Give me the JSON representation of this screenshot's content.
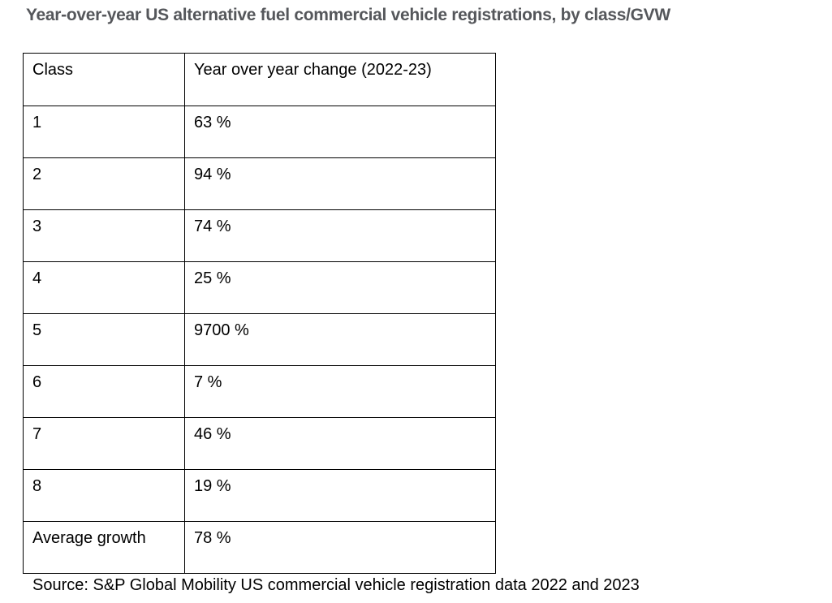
{
  "title": "Year-over-year US alternative fuel commercial vehicle registrations, by class/GVW",
  "source": "Source: S&P Global Mobility US commercial vehicle registration data 2022 and 2023",
  "colors": {
    "title_text": "#55575b",
    "body_text": "#000000",
    "table_border": "#000000",
    "background": "#ffffff"
  },
  "chart_data": {
    "type": "table",
    "title": "Year-over-year US alternative fuel commercial vehicle registrations, by class/GVW",
    "columns": [
      "Class",
      "Year over year change (2022-23)"
    ],
    "rows": [
      [
        "1",
        "63 %"
      ],
      [
        "2",
        "94 %"
      ],
      [
        "3",
        "74 %"
      ],
      [
        "4",
        "25 %"
      ],
      [
        "5",
        "9700 %"
      ],
      [
        "6",
        "7 %"
      ],
      [
        "7",
        "46 %"
      ],
      [
        "8",
        "19 %"
      ],
      [
        "Average growth",
        "78 %"
      ]
    ],
    "source": "Source: S&P Global Mobility US commercial vehicle registration data 2022 and 2023"
  }
}
